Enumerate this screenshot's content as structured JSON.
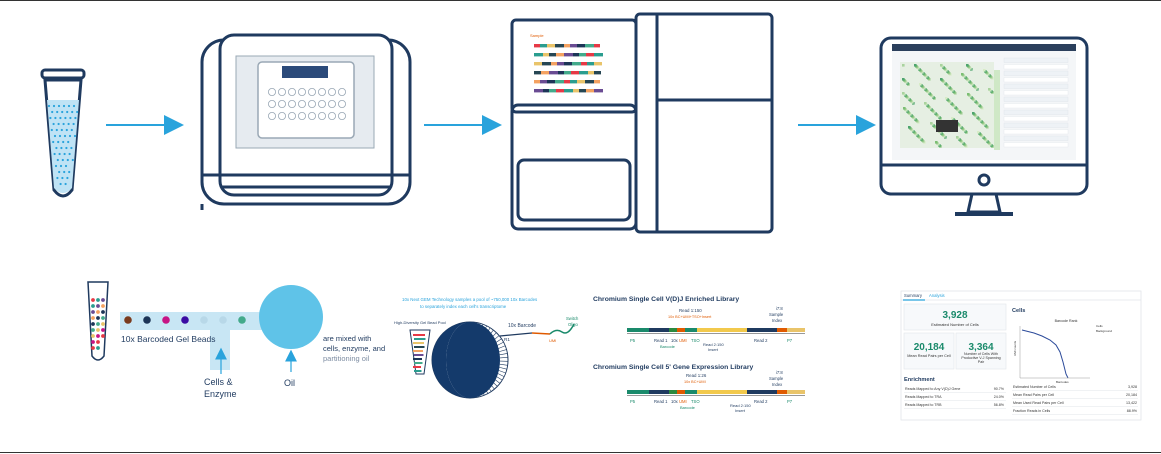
{
  "colors": {
    "outline": "#1f3a5f",
    "arrow": "#29a3dc",
    "tube_fill": "#bfe3f5",
    "tube_dot": "#29a3dc",
    "oil_droplet": "#5fc3e8",
    "channel": "#c8e6f4",
    "gem_dark": "#143a6b",
    "panel_green": "#1a8a6b"
  },
  "icons": [
    "sample-tube-icon",
    "controller-instrument-icon",
    "sequencer-icon",
    "monitor-icon"
  ],
  "gem_panel": {
    "beads_label": "10x Barcoded Gel Beads",
    "cells_label_1": "Cells &",
    "cells_label_2": "Enzyme",
    "oil_label": "Oil",
    "mix_text_1": "are mixed with",
    "mix_text_2": "cells, enzyme, and",
    "mix_text_3": "partitioning oil"
  },
  "droplet_panel": {
    "caption_1": "10x Next GEM Technology samples a pool of ~750,000 10x Barcodes",
    "caption_2": "to separately index each cell's transcriptome",
    "bead_pool_label": "High-Diversity Gel Bead Pool",
    "barcode_label": "10x Barcode",
    "r1_label": "R1",
    "umi_label": "UMI",
    "switch_label_1": "Switch",
    "switch_label_2": "Oligo"
  },
  "library_panel": {
    "title_vdj": "Chromium Single Cell V(D)J Enriched Library",
    "title_gex": "Chromium Single Cell 5' Gene Expression Library",
    "read1_label_vdj": "Read 1:150",
    "read1_sub_vdj": "10x BC+UMI+TSO+Insert",
    "read1_label_gex": "Read 1:26",
    "read1_sub_gex": "10x BC+UMI",
    "i7_label": "i7:8",
    "sample_label": "Sample",
    "index_label": "Index",
    "p5": "P5",
    "read1": "Read 1",
    "tenx": "10x",
    "umi": "UMI",
    "tso": "TSO",
    "read2": "Read 2",
    "p7": "P7",
    "barcode": "Barcode",
    "insert": "Insert",
    "read2_150": "Read 2:150"
  },
  "summary_panel": {
    "tab_summary": "Summary",
    "tab_analysis": "Analysis",
    "cells_value": "3,928",
    "cells_caption": "Estimated Number of Cells",
    "reads_value": "20,184",
    "reads_caption": "Mean Read Pairs per Cell",
    "vj_value": "3,364",
    "vj_caption_1": "Number of Cells With",
    "vj_caption_2": "Productive V-J Spanning",
    "vj_caption_3": "Pair",
    "enrichment_title": "Enrichment",
    "enrichment_rows": [
      {
        "label": "Reads Mapped to Any V(D)J Gene",
        "value": "90.7%"
      },
      {
        "label": "Reads Mapped to TRA",
        "value": "24.0%"
      },
      {
        "label": "Reads Mapped to TRB",
        "value": "56.8%"
      }
    ],
    "cells_title": "Cells",
    "barcode_rank": "Barcode Rank",
    "umi_counts": "UMI counts",
    "barcodes": "Barcodes",
    "legend_cells": "Cells",
    "legend_background": "Background",
    "cells_rows": [
      {
        "label": "Estimated Number of Cells",
        "value": "3,928"
      },
      {
        "label": "Mean Read Pairs per Cell",
        "value": "20,184"
      },
      {
        "label": "Mean Used Read Pairs per Cell",
        "value": "13,422"
      },
      {
        "label": "Fraction Reads in Cells",
        "value": "88.9%"
      }
    ]
  }
}
